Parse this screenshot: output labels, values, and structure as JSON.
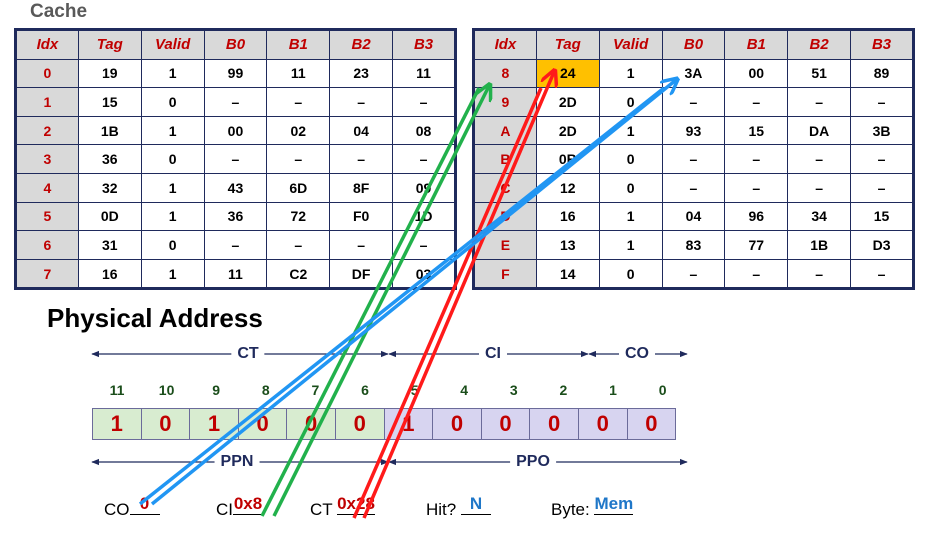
{
  "cache_title": "Cache",
  "columns": [
    "Idx",
    "Tag",
    "Valid",
    "B0",
    "B1",
    "B2",
    "B3"
  ],
  "left_rows": [
    [
      "0",
      "19",
      "1",
      "99",
      "11",
      "23",
      "11"
    ],
    [
      "1",
      "15",
      "0",
      "–",
      "–",
      "–",
      "–"
    ],
    [
      "2",
      "1B",
      "1",
      "00",
      "02",
      "04",
      "08"
    ],
    [
      "3",
      "36",
      "0",
      "–",
      "–",
      "–",
      "–"
    ],
    [
      "4",
      "32",
      "1",
      "43",
      "6D",
      "8F",
      "09"
    ],
    [
      "5",
      "0D",
      "1",
      "36",
      "72",
      "F0",
      "1D"
    ],
    [
      "6",
      "31",
      "0",
      "–",
      "–",
      "–",
      "–"
    ],
    [
      "7",
      "16",
      "1",
      "11",
      "C2",
      "DF",
      "03"
    ]
  ],
  "right_rows": [
    [
      "8",
      "24",
      "1",
      "3A",
      "00",
      "51",
      "89"
    ],
    [
      "9",
      "2D",
      "0",
      "–",
      "–",
      "–",
      "–"
    ],
    [
      "A",
      "2D",
      "1",
      "93",
      "15",
      "DA",
      "3B"
    ],
    [
      "B",
      "0B",
      "0",
      "–",
      "–",
      "–",
      "–"
    ],
    [
      "C",
      "12",
      "0",
      "–",
      "–",
      "–",
      "–"
    ],
    [
      "D",
      "16",
      "1",
      "04",
      "96",
      "34",
      "15"
    ],
    [
      "E",
      "13",
      "1",
      "83",
      "77",
      "1B",
      "D3"
    ],
    [
      "F",
      "14",
      "0",
      "–",
      "–",
      "–",
      "–"
    ]
  ],
  "highlight": {
    "table": "right",
    "row": 0,
    "col": 1,
    "color": "#ffc000"
  },
  "physical_address": {
    "title": "Physical Address",
    "field_labels": {
      "ct": "CT",
      "ci": "CI",
      "co": "CO",
      "ppn": "PPN",
      "ppo": "PPO"
    },
    "bit_numbers": [
      "11",
      "10",
      "9",
      "8",
      "7",
      "6",
      "5",
      "4",
      "3",
      "2",
      "1",
      "0"
    ],
    "bits": [
      "1",
      "0",
      "1",
      "0",
      "0",
      "0",
      "1",
      "0",
      "0",
      "0",
      "0",
      "0"
    ]
  },
  "answers": {
    "co_label": "CO",
    "co_value": "0",
    "ci_label": "CI",
    "ci_value": "0x8",
    "ct_label": "CT",
    "ct_value": "0x28",
    "hit_label": "Hit?",
    "hit_value": "N",
    "byte_label": "Byte:",
    "byte_value": "Mem"
  },
  "colors": {
    "table_border": "#1f2a5c",
    "header_text": "#c00000",
    "arrow_red": "#ff1a1a",
    "arrow_green": "#22b14c",
    "arrow_blue": "#2196f3"
  }
}
